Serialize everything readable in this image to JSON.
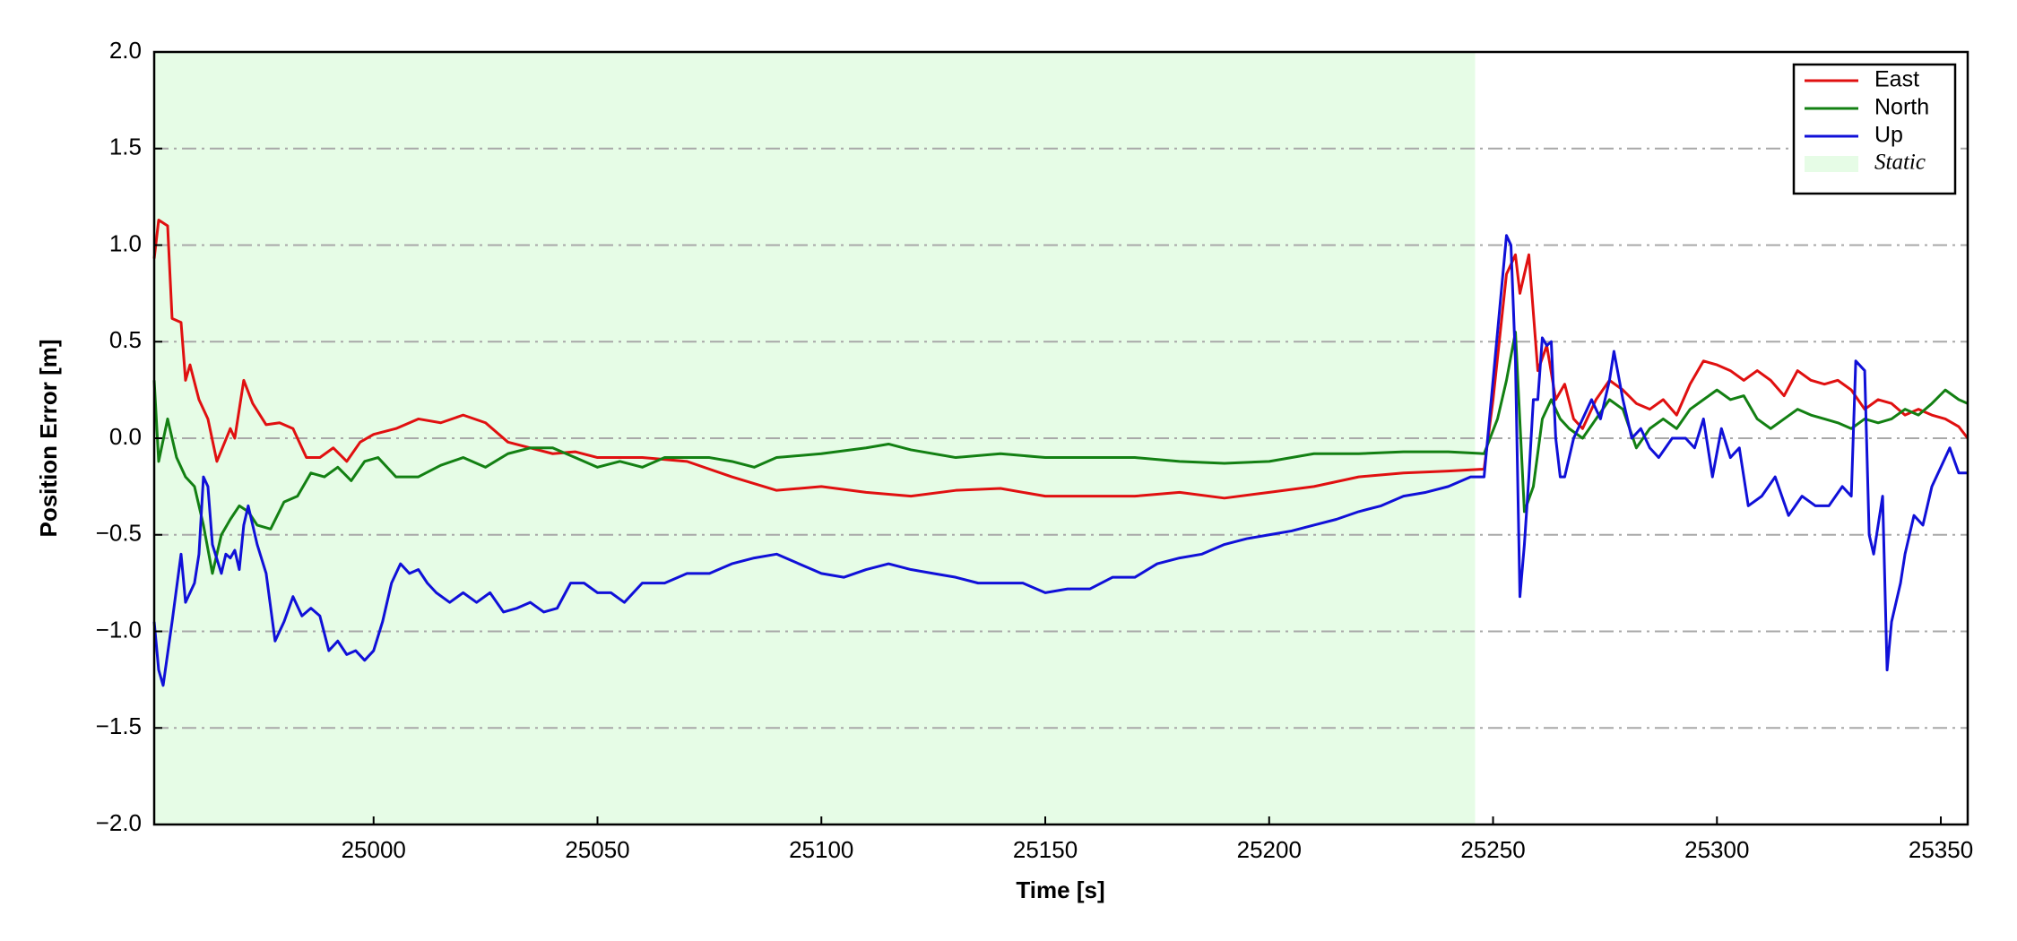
{
  "chart_data": {
    "type": "line",
    "x_label": "Time [s]",
    "y_label": "Position Error [m]",
    "xlim": [
      24951,
      25356
    ],
    "ylim": [
      -2.0,
      2.0
    ],
    "xticks": [
      25000,
      25050,
      25100,
      25150,
      25200,
      25250,
      25300,
      25350
    ],
    "yticks": [
      {
        "value": -2.0,
        "label": "−2.0"
      },
      {
        "value": -1.5,
        "label": "−1.5"
      },
      {
        "value": -1.0,
        "label": "−1.0"
      },
      {
        "value": -0.5,
        "label": "−0.5"
      },
      {
        "value": 0.0,
        "label": "0.0"
      },
      {
        "value": 0.5,
        "label": "0.5"
      },
      {
        "value": 1.0,
        "label": "1.0"
      },
      {
        "value": 1.5,
        "label": "1.5"
      },
      {
        "value": 2.0,
        "label": "2.0"
      }
    ],
    "grid": "y",
    "legend": "upper right",
    "shaded_regions": [
      {
        "name": "Static",
        "start": 24951,
        "end": 25246,
        "color": "#e6fce6"
      }
    ],
    "series": [
      {
        "name": "East",
        "color": "#e01010",
        "x": [
          24951,
          24952,
          24954,
          24955,
          24957,
          24958,
          24959,
          24961,
          24963,
          24965,
          24968,
          24969,
          24971,
          24973,
          24976,
          24979,
          24982,
          24985,
          24988,
          24991,
          24994,
          24997,
          25000,
          25005,
          25010,
          25015,
          25020,
          25025,
          25030,
          25035,
          25040,
          25045,
          25050,
          25060,
          25070,
          25080,
          25090,
          25100,
          25110,
          25120,
          25130,
          25140,
          25150,
          25160,
          25170,
          25180,
          25190,
          25200,
          25210,
          25220,
          25230,
          25240,
          25248,
          25250,
          25253,
          25255,
          25256,
          25258,
          25260,
          25262,
          25264,
          25266,
          25268,
          25270,
          25273,
          25276,
          25279,
          25282,
          25285,
          25288,
          25291,
          25294,
          25297,
          25300,
          25303,
          25306,
          25309,
          25312,
          25315,
          25318,
          25321,
          25324,
          25327,
          25330,
          25333,
          25336,
          25339,
          25342,
          25345,
          25348,
          25351,
          25354,
          25356
        ],
        "values": [
          0.93,
          1.13,
          1.1,
          0.62,
          0.6,
          0.3,
          0.38,
          0.2,
          0.1,
          -0.12,
          0.05,
          0.0,
          0.3,
          0.18,
          0.07,
          0.08,
          0.05,
          -0.1,
          -0.1,
          -0.05,
          -0.12,
          -0.02,
          0.02,
          0.05,
          0.1,
          0.08,
          0.12,
          0.08,
          -0.02,
          -0.05,
          -0.08,
          -0.07,
          -0.1,
          -0.1,
          -0.12,
          -0.2,
          -0.27,
          -0.25,
          -0.28,
          -0.3,
          -0.27,
          -0.26,
          -0.3,
          -0.3,
          -0.3,
          -0.28,
          -0.31,
          -0.28,
          -0.25,
          -0.2,
          -0.18,
          -0.17,
          -0.16,
          0.2,
          0.85,
          0.95,
          0.75,
          0.95,
          0.35,
          0.48,
          0.2,
          0.28,
          0.1,
          0.05,
          0.2,
          0.3,
          0.25,
          0.18,
          0.15,
          0.2,
          0.12,
          0.28,
          0.4,
          0.38,
          0.35,
          0.3,
          0.35,
          0.3,
          0.22,
          0.35,
          0.3,
          0.28,
          0.3,
          0.25,
          0.15,
          0.2,
          0.18,
          0.12,
          0.15,
          0.12,
          0.1,
          0.06,
          0.0
        ]
      },
      {
        "name": "North",
        "color": "#138013",
        "x": [
          24951,
          24952,
          24954,
          24956,
          24958,
          24960,
          24962,
          24964,
          24966,
          24968,
          24970,
          24972,
          24974,
          24977,
          24980,
          24983,
          24986,
          24989,
          24992,
          24995,
          24998,
          25001,
          25005,
          25010,
          25015,
          25020,
          25025,
          25030,
          25035,
          25040,
          25045,
          25050,
          25055,
          25060,
          25065,
          25070,
          25075,
          25080,
          25085,
          25090,
          25100,
          25110,
          25115,
          25120,
          25130,
          25140,
          25150,
          25160,
          25170,
          25180,
          25190,
          25200,
          25210,
          25220,
          25230,
          25240,
          25248,
          25251,
          25253,
          25255,
          25257,
          25259,
          25261,
          25263,
          25265,
          25267,
          25270,
          25273,
          25276,
          25279,
          25282,
          25285,
          25288,
          25291,
          25294,
          25297,
          25300,
          25303,
          25306,
          25309,
          25312,
          25315,
          25318,
          25321,
          25324,
          25327,
          25330,
          25333,
          25336,
          25339,
          25342,
          25345,
          25348,
          25351,
          25354,
          25356
        ],
        "values": [
          0.3,
          -0.12,
          0.1,
          -0.1,
          -0.2,
          -0.25,
          -0.45,
          -0.7,
          -0.5,
          -0.42,
          -0.35,
          -0.38,
          -0.45,
          -0.47,
          -0.33,
          -0.3,
          -0.18,
          -0.2,
          -0.15,
          -0.22,
          -0.12,
          -0.1,
          -0.2,
          -0.2,
          -0.14,
          -0.1,
          -0.15,
          -0.08,
          -0.05,
          -0.05,
          -0.1,
          -0.15,
          -0.12,
          -0.15,
          -0.1,
          -0.1,
          -0.1,
          -0.12,
          -0.15,
          -0.1,
          -0.08,
          -0.05,
          -0.03,
          -0.06,
          -0.1,
          -0.08,
          -0.1,
          -0.1,
          -0.1,
          -0.12,
          -0.13,
          -0.12,
          -0.08,
          -0.08,
          -0.07,
          -0.07,
          -0.08,
          0.1,
          0.3,
          0.55,
          -0.38,
          -0.25,
          0.1,
          0.2,
          0.1,
          0.05,
          0.0,
          0.1,
          0.2,
          0.15,
          -0.05,
          0.05,
          0.1,
          0.05,
          0.15,
          0.2,
          0.25,
          0.2,
          0.22,
          0.1,
          0.05,
          0.1,
          0.15,
          0.12,
          0.1,
          0.08,
          0.05,
          0.1,
          0.08,
          0.1,
          0.15,
          0.12,
          0.18,
          0.25,
          0.2,
          0.18
        ]
      },
      {
        "name": "Up",
        "color": "#1010d8",
        "x": [
          24951,
          24952,
          24953,
          24955,
          24957,
          24958,
          24960,
          24961,
          24962,
          24963,
          24964,
          24966,
          24967,
          24968,
          24969,
          24970,
          24971,
          24972,
          24974,
          24976,
          24978,
          24980,
          24982,
          24984,
          24986,
          24988,
          24990,
          24992,
          24994,
          24996,
          24998,
          25000,
          25002,
          25004,
          25006,
          25008,
          25010,
          25012,
          25014,
          25017,
          25020,
          25023,
          25026,
          25029,
          25032,
          25035,
          25038,
          25041,
          25044,
          25047,
          25050,
          25053,
          25056,
          25060,
          25065,
          25070,
          25075,
          25080,
          25085,
          25090,
          25095,
          25100,
          25105,
          25110,
          25115,
          25120,
          25125,
          25130,
          25135,
          25140,
          25145,
          25150,
          25155,
          25160,
          25165,
          25170,
          25175,
          25180,
          25185,
          25190,
          25195,
          25200,
          25205,
          25210,
          25215,
          25220,
          25225,
          25230,
          25235,
          25240,
          25245,
          25248,
          25250,
          25252,
          25253,
          25254,
          25255,
          25256,
          25257,
          25258,
          25259,
          25260,
          25261,
          25262,
          25263,
          25264,
          25265,
          25266,
          25268,
          25270,
          25272,
          25274,
          25276,
          25277,
          25279,
          25281,
          25283,
          25285,
          25287,
          25290,
          25293,
          25295,
          25297,
          25299,
          25301,
          25303,
          25305,
          25307,
          25310,
          25313,
          25316,
          25319,
          25322,
          25325,
          25328,
          25330,
          25331,
          25333,
          25334,
          25335,
          25337,
          25338,
          25339,
          25341,
          25342,
          25344,
          25346,
          25348,
          25350,
          25352,
          25354,
          25356
        ],
        "values": [
          -0.95,
          -1.2,
          -1.28,
          -0.95,
          -0.6,
          -0.85,
          -0.75,
          -0.6,
          -0.2,
          -0.25,
          -0.55,
          -0.7,
          -0.6,
          -0.62,
          -0.58,
          -0.68,
          -0.45,
          -0.35,
          -0.55,
          -0.7,
          -1.05,
          -0.95,
          -0.82,
          -0.92,
          -0.88,
          -0.92,
          -1.1,
          -1.05,
          -1.12,
          -1.1,
          -1.15,
          -1.1,
          -0.95,
          -0.75,
          -0.65,
          -0.7,
          -0.68,
          -0.75,
          -0.8,
          -0.85,
          -0.8,
          -0.85,
          -0.8,
          -0.9,
          -0.88,
          -0.85,
          -0.9,
          -0.88,
          -0.75,
          -0.75,
          -0.8,
          -0.8,
          -0.85,
          -0.75,
          -0.75,
          -0.7,
          -0.7,
          -0.65,
          -0.62,
          -0.6,
          -0.65,
          -0.7,
          -0.72,
          -0.68,
          -0.65,
          -0.68,
          -0.7,
          -0.72,
          -0.75,
          -0.75,
          -0.75,
          -0.8,
          -0.78,
          -0.78,
          -0.72,
          -0.72,
          -0.65,
          -0.62,
          -0.6,
          -0.55,
          -0.52,
          -0.5,
          -0.48,
          -0.45,
          -0.42,
          -0.38,
          -0.35,
          -0.3,
          -0.28,
          -0.25,
          -0.2,
          -0.2,
          0.3,
          0.8,
          1.05,
          1.0,
          0.4,
          -0.82,
          -0.55,
          -0.2,
          0.2,
          0.2,
          0.52,
          0.48,
          0.5,
          0.0,
          -0.2,
          -0.2,
          0.0,
          0.1,
          0.2,
          0.1,
          0.3,
          0.45,
          0.2,
          0.0,
          0.05,
          -0.05,
          -0.1,
          0.0,
          0.0,
          -0.05,
          0.1,
          -0.2,
          0.05,
          -0.1,
          -0.05,
          -0.35,
          -0.3,
          -0.2,
          -0.4,
          -0.3,
          -0.35,
          -0.35,
          -0.25,
          -0.3,
          0.4,
          0.35,
          -0.5,
          -0.6,
          -0.3,
          -1.2,
          -0.95,
          -0.75,
          -0.6,
          -0.4,
          -0.45,
          -0.25,
          -0.15,
          -0.05,
          -0.18,
          -0.18
        ]
      }
    ]
  }
}
